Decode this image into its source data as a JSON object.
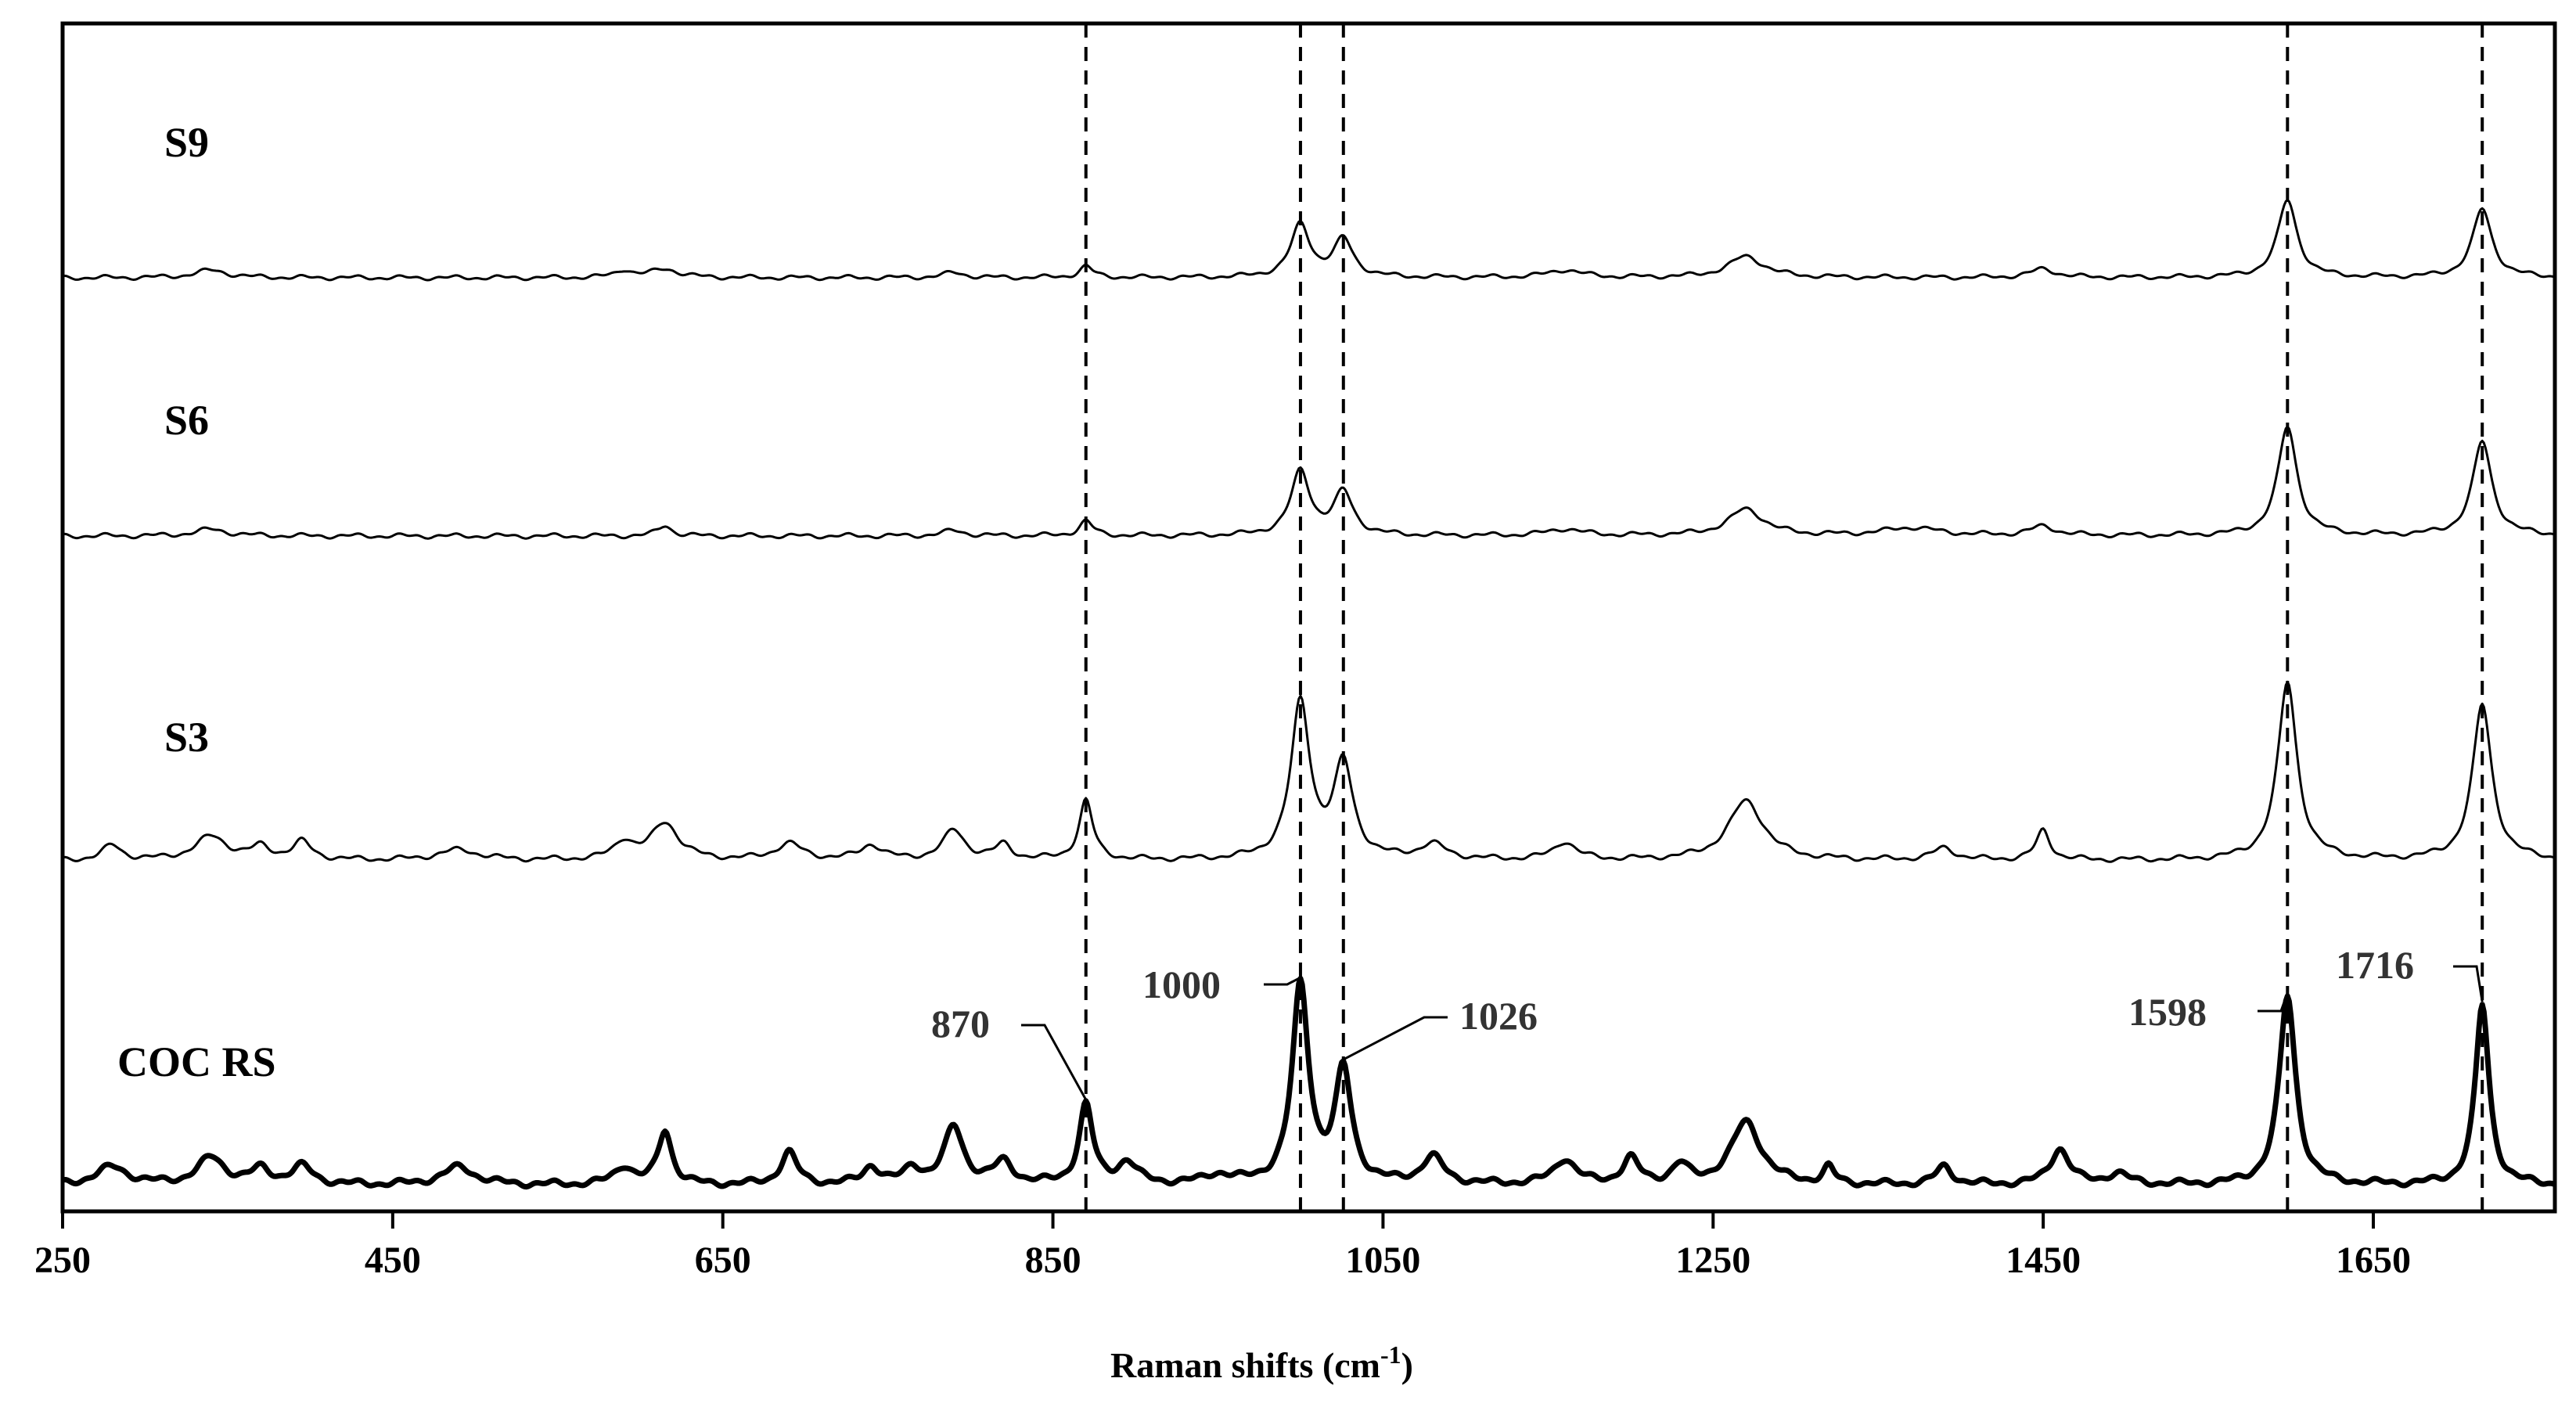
{
  "chart_data": {
    "type": "line",
    "title": "",
    "xlabel": "Raman  shifts",
    "xlabel_unit": "(cm",
    "xlabel_sup": "-1",
    "xlabel_close": ")",
    "ylabel": "",
    "xlim": [
      250,
      1760
    ],
    "x_ticks": [
      250,
      450,
      650,
      850,
      1050,
      1250,
      1450,
      1650
    ],
    "x_tick_labels": [
      "250",
      "450",
      "650",
      "850",
      "1050",
      "1250",
      "1450",
      "1650"
    ],
    "grid": false,
    "reference_lines": [
      870,
      1000,
      1026,
      1598,
      1716
    ],
    "series": [
      {
        "name": "S9",
        "stroke_width": 3,
        "peaks": [
          [
            340,
            0.06,
            12
          ],
          [
            590,
            0.06,
            6
          ],
          [
            615,
            0.07,
            10
          ],
          [
            790,
            0.04,
            8
          ],
          [
            870,
            0.09,
            5
          ],
          [
            1000,
            0.42,
            7
          ],
          [
            1026,
            0.3,
            7
          ],
          [
            1160,
            0.06,
            12
          ],
          [
            1270,
            0.17,
            13
          ],
          [
            1450,
            0.07,
            9
          ],
          [
            1598,
            0.62,
            7
          ],
          [
            1716,
            0.55,
            7
          ]
        ]
      },
      {
        "name": "S6",
        "stroke_width": 3,
        "peaks": [
          [
            340,
            0.05,
            12
          ],
          [
            615,
            0.08,
            5
          ],
          [
            790,
            0.04,
            8
          ],
          [
            870,
            0.11,
            5
          ],
          [
            1000,
            0.48,
            7
          ],
          [
            1026,
            0.32,
            7
          ],
          [
            1160,
            0.05,
            12
          ],
          [
            1270,
            0.2,
            13
          ],
          [
            1370,
            0.06,
            20
          ],
          [
            1450,
            0.07,
            9
          ],
          [
            1598,
            0.82,
            7
          ],
          [
            1716,
            0.71,
            7
          ]
        ]
      },
      {
        "name": "S3",
        "stroke_width": 3,
        "peaks": [
          [
            280,
            0.1,
            7
          ],
          [
            340,
            0.16,
            12
          ],
          [
            370,
            0.08,
            7
          ],
          [
            395,
            0.12,
            7
          ],
          [
            490,
            0.07,
            15
          ],
          [
            590,
            0.12,
            7
          ],
          [
            615,
            0.25,
            10
          ],
          [
            690,
            0.11,
            10
          ],
          [
            740,
            0.1,
            8
          ],
          [
            790,
            0.2,
            8
          ],
          [
            820,
            0.1,
            6
          ],
          [
            870,
            0.4,
            5
          ],
          [
            1000,
            1.05,
            7
          ],
          [
            1026,
            0.63,
            7
          ],
          [
            1080,
            0.1,
            10
          ],
          [
            1160,
            0.12,
            8
          ],
          [
            1270,
            0.4,
            13
          ],
          [
            1390,
            0.08,
            8
          ],
          [
            1450,
            0.2,
            5
          ],
          [
            1598,
            1.2,
            7
          ],
          [
            1716,
            1.05,
            7
          ]
        ]
      },
      {
        "name": "COC RS",
        "stroke_width": 7,
        "peaks": [
          [
            280,
            0.1,
            12
          ],
          [
            340,
            0.15,
            10
          ],
          [
            370,
            0.08,
            7
          ],
          [
            395,
            0.1,
            8
          ],
          [
            490,
            0.1,
            12
          ],
          [
            590,
            0.1,
            7
          ],
          [
            615,
            0.3,
            5
          ],
          [
            690,
            0.18,
            6
          ],
          [
            740,
            0.1,
            6
          ],
          [
            765,
            0.09,
            6
          ],
          [
            790,
            0.32,
            7
          ],
          [
            820,
            0.12,
            7
          ],
          [
            870,
            0.44,
            5
          ],
          [
            895,
            0.12,
            7
          ],
          [
            950,
            0.05,
            10
          ],
          [
            1000,
            1.1,
            6
          ],
          [
            1026,
            0.62,
            6
          ],
          [
            1080,
            0.15,
            8
          ],
          [
            1160,
            0.14,
            8
          ],
          [
            1200,
            0.14,
            6
          ],
          [
            1230,
            0.1,
            6
          ],
          [
            1270,
            0.35,
            11
          ],
          [
            1320,
            0.09,
            4
          ],
          [
            1390,
            0.1,
            6
          ],
          [
            1460,
            0.2,
            7
          ],
          [
            1495,
            0.06,
            8
          ],
          [
            1598,
            1.05,
            6
          ],
          [
            1716,
            1.0,
            5
          ]
        ]
      }
    ],
    "peak_labels": [
      "870",
      "1000",
      "1026",
      "1598",
      "1716"
    ]
  }
}
